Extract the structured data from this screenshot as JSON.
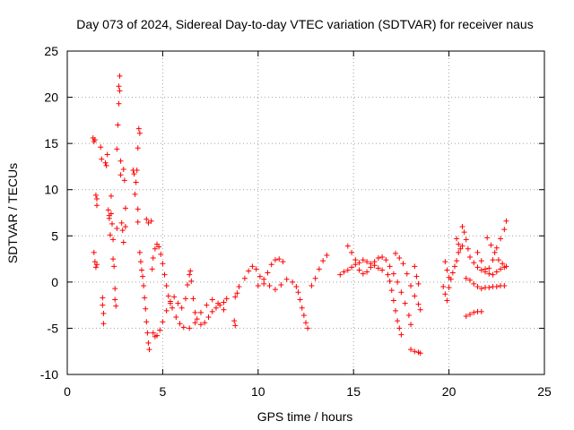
{
  "chart_data": {
    "type": "scatter",
    "title": "Day 073 of 2024, Sidereal Day-to-day VTEC variation (SDTVAR) for receiver naus",
    "xlabel": "GPS time / hours",
    "ylabel": "SDTVAR / TECUs",
    "xlim": [
      0,
      25
    ],
    "ylim": [
      -10,
      25
    ],
    "xticks": [
      "0",
      "5",
      "10",
      "15",
      "20",
      "25"
    ],
    "yticks": [
      "-10",
      "-5",
      "0",
      "5",
      "10",
      "15",
      "20",
      "25"
    ],
    "grid": true,
    "marker": "+",
    "color": "#ff0000",
    "series": [
      {
        "name": "sdtvar",
        "points": [
          [
            1.35,
            15.6
          ],
          [
            1.4,
            15.2
          ],
          [
            1.45,
            15.4
          ],
          [
            1.5,
            9.4
          ],
          [
            1.55,
            9.0
          ],
          [
            1.55,
            8.3
          ],
          [
            1.4,
            3.2
          ],
          [
            1.45,
            2.2
          ],
          [
            1.5,
            1.6
          ],
          [
            1.55,
            1.9
          ],
          [
            1.75,
            14.6
          ],
          [
            1.8,
            13.3
          ],
          [
            1.85,
            -1.7
          ],
          [
            1.85,
            -2.5
          ],
          [
            1.9,
            -3.4
          ],
          [
            1.9,
            -4.5
          ],
          [
            2.0,
            12.9
          ],
          [
            2.05,
            12.6
          ],
          [
            2.1,
            13.8
          ],
          [
            2.15,
            7.8
          ],
          [
            2.2,
            7.2
          ],
          [
            2.2,
            6.9
          ],
          [
            2.25,
            5.1
          ],
          [
            2.3,
            7.4
          ],
          [
            2.3,
            9.3
          ],
          [
            2.35,
            6.3
          ],
          [
            2.4,
            4.6
          ],
          [
            2.4,
            2.5
          ],
          [
            2.45,
            1.7
          ],
          [
            2.5,
            -0.7
          ],
          [
            2.5,
            -1.9
          ],
          [
            2.55,
            -2.6
          ],
          [
            2.6,
            5.8
          ],
          [
            2.6,
            14.4
          ],
          [
            2.65,
            17.0
          ],
          [
            2.7,
            19.3
          ],
          [
            2.7,
            21.2
          ],
          [
            2.75,
            22.3
          ],
          [
            2.75,
            20.7
          ],
          [
            2.8,
            13.1
          ],
          [
            2.8,
            11.6
          ],
          [
            2.85,
            6.4
          ],
          [
            2.9,
            5.6
          ],
          [
            2.95,
            4.3
          ],
          [
            2.95,
            12.2
          ],
          [
            3.0,
            11.0
          ],
          [
            3.05,
            8.0
          ],
          [
            3.05,
            6.0
          ],
          [
            3.45,
            12.1
          ],
          [
            3.5,
            11.7
          ],
          [
            3.55,
            9.5
          ],
          [
            3.6,
            10.8
          ],
          [
            3.65,
            12.1
          ],
          [
            3.7,
            14.5
          ],
          [
            3.75,
            16.6
          ],
          [
            3.8,
            16.1
          ],
          [
            3.7,
            7.9
          ],
          [
            3.7,
            6.5
          ],
          [
            3.8,
            3.2
          ],
          [
            3.85,
            2.2
          ],
          [
            3.9,
            1.3
          ],
          [
            3.95,
            0.6
          ],
          [
            4.0,
            -0.4
          ],
          [
            4.05,
            -1.7
          ],
          [
            4.1,
            -2.9
          ],
          [
            4.15,
            -4.3
          ],
          [
            4.2,
            -5.5
          ],
          [
            4.25,
            -6.6
          ],
          [
            4.3,
            -7.3
          ],
          [
            4.15,
            6.8
          ],
          [
            4.25,
            6.4
          ],
          [
            4.4,
            6.6
          ],
          [
            4.45,
            1.4
          ],
          [
            4.5,
            2.6
          ],
          [
            4.6,
            3.6
          ],
          [
            4.7,
            4.1
          ],
          [
            4.8,
            3.8
          ],
          [
            4.9,
            3.0
          ],
          [
            5.0,
            2.0
          ],
          [
            5.1,
            0.8
          ],
          [
            5.2,
            -0.4
          ],
          [
            5.3,
            -1.5
          ],
          [
            5.4,
            -2.3
          ],
          [
            5.5,
            -2.8
          ],
          [
            4.5,
            -5.5
          ],
          [
            4.6,
            -5.9
          ],
          [
            4.7,
            -5.8
          ],
          [
            4.85,
            -5.2
          ],
          [
            5.0,
            -4.3
          ],
          [
            5.2,
            -3.1
          ],
          [
            5.4,
            -2.1
          ],
          [
            5.6,
            -1.6
          ],
          [
            5.8,
            -2.3
          ],
          [
            6.0,
            -2.8
          ],
          [
            6.2,
            -1.8
          ],
          [
            6.3,
            -0.3
          ],
          [
            6.4,
            0.8
          ],
          [
            6.45,
            1.2
          ],
          [
            6.5,
            0.1
          ],
          [
            6.6,
            -1.8
          ],
          [
            6.7,
            -3.3
          ],
          [
            6.8,
            -4.0
          ],
          [
            7.0,
            -4.6
          ],
          [
            7.2,
            -4.4
          ],
          [
            7.4,
            -3.8
          ],
          [
            7.6,
            -3.2
          ],
          [
            7.8,
            -2.8
          ],
          [
            8.0,
            -2.5
          ],
          [
            8.2,
            -2.2
          ],
          [
            8.35,
            -1.8
          ],
          [
            5.7,
            -3.8
          ],
          [
            5.9,
            -4.5
          ],
          [
            6.1,
            -4.9
          ],
          [
            6.4,
            -5.0
          ],
          [
            6.7,
            -4.4
          ],
          [
            7.0,
            -3.3
          ],
          [
            7.3,
            -2.5
          ],
          [
            7.6,
            -1.9
          ],
          [
            7.9,
            -2.3
          ],
          [
            8.2,
            -3.0
          ],
          [
            8.8,
            -1.6
          ],
          [
            8.9,
            -1.2
          ],
          [
            9.0,
            -0.5
          ],
          [
            8.75,
            -4.2
          ],
          [
            8.8,
            -4.7
          ],
          [
            9.3,
            0.4
          ],
          [
            9.5,
            1.2
          ],
          [
            9.7,
            1.7
          ],
          [
            9.9,
            1.4
          ],
          [
            10.1,
            0.6
          ],
          [
            10.3,
            0.3
          ],
          [
            10.5,
            1.0
          ],
          [
            10.7,
            1.9
          ],
          [
            10.9,
            2.4
          ],
          [
            11.1,
            2.5
          ],
          [
            11.3,
            2.2
          ],
          [
            10.0,
            -0.4
          ],
          [
            10.3,
            -0.2
          ],
          [
            10.6,
            -0.4
          ],
          [
            10.9,
            -0.8
          ],
          [
            11.2,
            -0.3
          ],
          [
            11.5,
            0.3
          ],
          [
            11.8,
            0.0
          ],
          [
            12.0,
            -0.5
          ],
          [
            12.1,
            -1.1
          ],
          [
            12.2,
            -1.9
          ],
          [
            12.3,
            -2.8
          ],
          [
            12.4,
            -3.6
          ],
          [
            12.5,
            -4.4
          ],
          [
            12.6,
            -5.0
          ],
          [
            12.8,
            -0.4
          ],
          [
            13.0,
            0.4
          ],
          [
            13.2,
            1.4
          ],
          [
            13.4,
            2.3
          ],
          [
            13.6,
            2.9
          ],
          [
            14.3,
            0.8
          ],
          [
            14.5,
            1.1
          ],
          [
            14.7,
            1.3
          ],
          [
            14.9,
            1.6
          ],
          [
            15.1,
            1.9
          ],
          [
            15.3,
            2.1
          ],
          [
            15.5,
            2.4
          ],
          [
            15.7,
            2.2
          ],
          [
            15.9,
            2.0
          ],
          [
            16.1,
            1.8
          ],
          [
            16.3,
            1.5
          ],
          [
            16.5,
            1.3
          ],
          [
            14.7,
            3.9
          ],
          [
            14.9,
            3.2
          ],
          [
            15.1,
            2.4
          ],
          [
            15.3,
            1.3
          ],
          [
            15.5,
            0.9
          ],
          [
            15.7,
            1.1
          ],
          [
            15.9,
            1.6
          ],
          [
            16.1,
            2.2
          ],
          [
            16.3,
            2.6
          ],
          [
            16.5,
            2.7
          ],
          [
            16.7,
            2.4
          ],
          [
            16.9,
            1.7
          ],
          [
            17.1,
            0.9
          ],
          [
            17.3,
            0.0
          ],
          [
            17.5,
            -1.1
          ],
          [
            17.7,
            -2.3
          ],
          [
            17.9,
            -3.6
          ],
          [
            18.0,
            -4.6
          ],
          [
            16.8,
            0.8
          ],
          [
            16.9,
            0.1
          ],
          [
            17.0,
            -0.9
          ],
          [
            17.1,
            -2.0
          ],
          [
            17.2,
            -3.1
          ],
          [
            17.3,
            -4.2
          ],
          [
            17.4,
            -5.0
          ],
          [
            17.5,
            -5.7
          ],
          [
            17.2,
            3.1
          ],
          [
            17.4,
            2.6
          ],
          [
            17.6,
            2.0
          ],
          [
            17.8,
            0.9
          ],
          [
            18.0,
            -0.4
          ],
          [
            18.2,
            -1.5
          ],
          [
            18.4,
            -2.4
          ],
          [
            18.5,
            -3.0
          ],
          [
            18.0,
            -7.3
          ],
          [
            18.2,
            -7.5
          ],
          [
            18.4,
            -7.6
          ],
          [
            18.5,
            -7.7
          ],
          [
            18.2,
            1.7
          ],
          [
            18.3,
            0.6
          ],
          [
            18.4,
            -0.2
          ],
          [
            19.7,
            -0.5
          ],
          [
            19.8,
            -1.3
          ],
          [
            19.9,
            -2.0
          ],
          [
            20.0,
            -0.6
          ],
          [
            20.1,
            0.3
          ],
          [
            20.2,
            1.0
          ],
          [
            20.3,
            1.7
          ],
          [
            20.4,
            2.3
          ],
          [
            20.5,
            3.2
          ],
          [
            20.6,
            3.6
          ],
          [
            20.7,
            3.9
          ],
          [
            19.8,
            2.2
          ],
          [
            19.9,
            1.3
          ],
          [
            20.0,
            0.5
          ],
          [
            20.4,
            4.7
          ],
          [
            20.5,
            4.1
          ],
          [
            20.7,
            6.0
          ],
          [
            20.8,
            5.4
          ],
          [
            20.9,
            4.6
          ],
          [
            21.0,
            3.6
          ],
          [
            21.1,
            2.7
          ],
          [
            21.3,
            2.1
          ],
          [
            21.5,
            1.6
          ],
          [
            21.7,
            1.3
          ],
          [
            21.9,
            1.1
          ],
          [
            22.1,
            1.5
          ],
          [
            22.3,
            2.4
          ],
          [
            22.5,
            3.7
          ],
          [
            22.7,
            4.7
          ],
          [
            22.9,
            5.7
          ],
          [
            23.0,
            6.6
          ],
          [
            20.9,
            -3.7
          ],
          [
            21.1,
            -3.5
          ],
          [
            21.3,
            -3.3
          ],
          [
            21.5,
            -3.2
          ],
          [
            21.7,
            -3.2
          ],
          [
            20.9,
            0.4
          ],
          [
            21.1,
            0.2
          ],
          [
            21.3,
            -0.2
          ],
          [
            21.5,
            -0.5
          ],
          [
            21.7,
            -0.7
          ],
          [
            21.9,
            -0.6
          ],
          [
            22.1,
            -0.6
          ],
          [
            22.3,
            -0.5
          ],
          [
            22.5,
            -0.5
          ],
          [
            22.7,
            -0.4
          ],
          [
            22.9,
            -0.4
          ],
          [
            21.5,
            3.2
          ],
          [
            21.7,
            2.3
          ],
          [
            21.9,
            1.4
          ],
          [
            22.1,
            0.9
          ],
          [
            22.3,
            0.8
          ],
          [
            22.5,
            1.1
          ],
          [
            22.7,
            1.4
          ],
          [
            22.9,
            1.6
          ],
          [
            22.0,
            4.8
          ],
          [
            22.2,
            4.0
          ],
          [
            22.4,
            3.2
          ],
          [
            22.6,
            2.4
          ],
          [
            22.8,
            2.0
          ],
          [
            23.0,
            1.7
          ]
        ]
      }
    ]
  }
}
